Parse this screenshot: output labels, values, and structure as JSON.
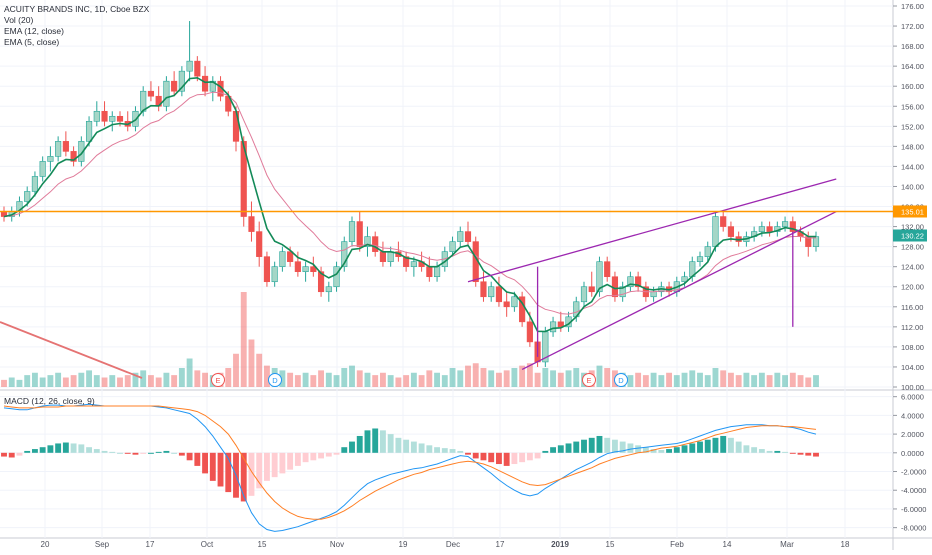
{
  "chart_data": {
    "type": "candlestick",
    "title": "ACUITY BRANDS INC, 1D, Cboe BZX",
    "indicators": [
      "Vol (20)",
      "EMA (12, close)",
      "EMA (5, close)"
    ],
    "macd_label": "MACD (12, 26, close, 9)",
    "price_axis": {
      "ticks": [
        "176.00",
        "172.00",
        "168.00",
        "164.00",
        "160.00",
        "156.00",
        "152.00",
        "148.00",
        "144.00",
        "140.00",
        "136.00",
        "132.00",
        "128.00",
        "124.00",
        "120.00",
        "116.00",
        "112.00",
        "108.00",
        "104.00",
        "100.00"
      ],
      "range": [
        100,
        176
      ]
    },
    "macd_axis": {
      "ticks": [
        "6.0000",
        "4.0000",
        "2.0000",
        "0.0000",
        "-2.0000",
        "-4.0000",
        "-6.0000",
        "-8.0000"
      ],
      "range": [
        -9,
        6.5
      ]
    },
    "time_axis": [
      "20",
      "Sep",
      "17",
      "Oct",
      "15",
      "Nov",
      "19",
      "Dec",
      "17",
      "2019",
      "15",
      "Feb",
      "14",
      "Mar",
      "18"
    ],
    "resistance_level": {
      "value": 135.01,
      "label": "135.01",
      "color": "#ff9800"
    },
    "last_price": {
      "value": 130.22,
      "label": "130.22",
      "color": "#26a69a"
    },
    "earnings_markers": [
      "E",
      "D",
      "E",
      "D"
    ],
    "colors": {
      "up": "#26a69a",
      "down": "#ef5350",
      "ema12": "#e07b9a",
      "ema5": "#138a58",
      "pattern": "#9c27b0",
      "macd": "#2196f3",
      "signal": "#ff7f24"
    },
    "candles": [
      [
        135,
        136,
        133,
        134
      ],
      [
        134,
        136,
        133,
        135
      ],
      [
        135,
        138,
        134,
        137
      ],
      [
        137,
        140,
        136,
        139
      ],
      [
        139,
        143,
        138,
        142
      ],
      [
        142,
        146,
        141,
        145
      ],
      [
        145,
        148,
        143,
        146
      ],
      [
        146,
        150,
        145,
        149
      ],
      [
        149,
        151,
        146,
        147
      ],
      [
        147,
        148,
        144,
        145
      ],
      [
        145,
        150,
        144,
        149
      ],
      [
        149,
        154,
        148,
        153
      ],
      [
        153,
        157,
        152,
        155
      ],
      [
        155,
        157,
        152,
        153
      ],
      [
        153,
        155,
        151,
        154
      ],
      [
        154,
        155,
        152,
        153
      ],
      [
        153,
        155,
        151,
        152
      ],
      [
        152,
        156,
        151,
        155
      ],
      [
        155,
        160,
        154,
        159
      ],
      [
        159,
        161,
        157,
        158
      ],
      [
        158,
        160,
        155,
        156
      ],
      [
        156,
        162,
        155,
        161
      ],
      [
        161,
        163,
        158,
        159
      ],
      [
        159,
        164,
        158,
        163
      ],
      [
        163,
        173,
        161,
        165
      ],
      [
        165,
        166,
        161,
        162
      ],
      [
        162,
        164,
        158,
        159
      ],
      [
        159,
        162,
        157,
        161
      ],
      [
        161,
        162,
        157,
        158
      ],
      [
        158,
        159,
        154,
        155
      ],
      [
        155,
        156,
        147,
        149
      ],
      [
        149,
        150,
        132,
        134
      ],
      [
        134,
        137,
        129,
        131
      ],
      [
        131,
        133,
        124,
        126
      ],
      [
        126,
        127,
        120,
        121
      ],
      [
        121,
        125,
        120,
        124
      ],
      [
        124,
        128,
        123,
        127
      ],
      [
        127,
        128,
        124,
        125
      ],
      [
        125,
        127,
        122,
        123
      ],
      [
        123,
        125,
        121,
        124
      ],
      [
        124,
        126,
        122,
        123
      ],
      [
        123,
        124,
        118,
        119
      ],
      [
        119,
        121,
        117,
        120
      ],
      [
        120,
        125,
        119,
        124
      ],
      [
        124,
        130,
        123,
        129
      ],
      [
        129,
        134,
        128,
        133
      ],
      [
        133,
        135,
        127,
        128
      ],
      [
        128,
        132,
        126,
        130
      ],
      [
        130,
        131,
        126,
        127
      ],
      [
        127,
        129,
        124,
        125
      ],
      [
        125,
        128,
        124,
        127
      ],
      [
        127,
        129,
        125,
        126
      ],
      [
        126,
        127,
        123,
        124
      ],
      [
        124,
        126,
        122,
        125
      ],
      [
        125,
        127,
        123,
        124
      ],
      [
        124,
        126,
        121,
        122
      ],
      [
        122,
        125,
        121,
        124
      ],
      [
        124,
        128,
        123,
        127
      ],
      [
        127,
        130,
        126,
        129
      ],
      [
        129,
        132,
        128,
        131
      ],
      [
        131,
        133,
        128,
        129
      ],
      [
        129,
        130,
        120,
        121
      ],
      [
        121,
        123,
        117,
        118
      ],
      [
        118,
        121,
        117,
        120
      ],
      [
        120,
        122,
        116,
        117
      ],
      [
        117,
        119,
        114,
        116
      ],
      [
        116,
        119,
        115,
        118
      ],
      [
        118,
        119,
        112,
        113
      ],
      [
        113,
        115,
        108,
        109
      ],
      [
        109,
        111,
        104,
        105
      ],
      [
        105,
        112,
        104,
        111
      ],
      [
        111,
        114,
        110,
        113
      ],
      [
        113,
        115,
        111,
        112
      ],
      [
        112,
        115,
        111,
        114
      ],
      [
        114,
        118,
        113,
        117
      ],
      [
        117,
        121,
        116,
        120
      ],
      [
        120,
        123,
        118,
        119
      ],
      [
        119,
        126,
        118,
        125
      ],
      [
        125,
        126,
        121,
        122
      ],
      [
        122,
        123,
        117,
        118
      ],
      [
        118,
        121,
        117,
        120
      ],
      [
        120,
        123,
        119,
        122
      ],
      [
        122,
        123,
        119,
        120
      ],
      [
        120,
        121,
        117,
        118
      ],
      [
        118,
        120,
        117,
        119
      ],
      [
        119,
        121,
        118,
        120
      ],
      [
        120,
        121,
        118,
        119
      ],
      [
        119,
        122,
        118,
        121
      ],
      [
        121,
        123,
        120,
        122
      ],
      [
        122,
        126,
        121,
        125
      ],
      [
        125,
        127,
        124,
        126
      ],
      [
        126,
        129,
        125,
        128
      ],
      [
        128,
        135,
        127,
        134
      ],
      [
        134,
        135,
        131,
        132
      ],
      [
        132,
        133,
        129,
        130
      ],
      [
        130,
        131,
        128,
        129
      ],
      [
        129,
        131,
        128,
        130
      ],
      [
        130,
        132,
        129,
        131
      ],
      [
        131,
        133,
        130,
        132
      ],
      [
        132,
        133,
        130,
        131
      ],
      [
        131,
        133,
        130,
        132
      ],
      [
        132,
        134,
        131,
        133
      ],
      [
        133,
        134,
        130,
        131
      ],
      [
        131,
        132,
        129,
        130
      ],
      [
        130,
        131,
        126,
        128
      ],
      [
        128,
        131,
        127,
        130
      ]
    ],
    "volumes": [
      3,
      4,
      3,
      5,
      6,
      4,
      5,
      6,
      4,
      5,
      6,
      7,
      5,
      4,
      5,
      4,
      5,
      6,
      7,
      5,
      4,
      6,
      5,
      8,
      12,
      7,
      6,
      5,
      6,
      8,
      14,
      40,
      20,
      14,
      9,
      8,
      7,
      6,
      5,
      6,
      5,
      7,
      6,
      5,
      8,
      9,
      7,
      6,
      5,
      6,
      5,
      4,
      5,
      6,
      5,
      7,
      6,
      5,
      8,
      7,
      9,
      10,
      8,
      7,
      6,
      7,
      8,
      9,
      10,
      6,
      8,
      7,
      6,
      7,
      8,
      6,
      7,
      9,
      8,
      7,
      6,
      5,
      6,
      5,
      6,
      5,
      6,
      5,
      6,
      7,
      6,
      5,
      8,
      7,
      6,
      5,
      6,
      5,
      6,
      5,
      6,
      5,
      6,
      5,
      4,
      5
    ],
    "macd_hist": [
      -0.4,
      -0.5,
      -0.3,
      0.2,
      0.4,
      0.6,
      0.8,
      1.0,
      1.1,
      1.0,
      0.9,
      0.6,
      0.4,
      0.2,
      0.1,
      0.0,
      -0.1,
      -0.2,
      -0.1,
      0.0,
      0.1,
      0.2,
      0.0,
      -0.3,
      -0.8,
      -1.4,
      -2.2,
      -3.0,
      -3.6,
      -4.2,
      -4.8,
      -5.2,
      -4.6,
      -3.8,
      -3.0,
      -2.6,
      -2.2,
      -1.8,
      -1.4,
      -1.0,
      -0.8,
      -0.6,
      -0.4,
      -0.2,
      0.6,
      1.2,
      1.8,
      2.4,
      2.6,
      2.4,
      2.0,
      1.6,
      1.4,
      1.2,
      1.0,
      0.8,
      0.6,
      0.5,
      0.4,
      0.2,
      -0.2,
      -0.6,
      -0.8,
      -1.0,
      -1.2,
      -1.4,
      -1.2,
      -1.0,
      -0.8,
      -0.6,
      0.2,
      0.6,
      0.8,
      1.0,
      1.2,
      1.4,
      1.6,
      1.8,
      1.6,
      1.4,
      1.2,
      1.0,
      0.8,
      0.6,
      0.4,
      0.3,
      0.4,
      0.6,
      0.8,
      1.0,
      1.2,
      1.4,
      1.6,
      1.8,
      1.6,
      1.2,
      0.8,
      0.6,
      0.4,
      0.2,
      0.2,
      0.1,
      -0.1,
      -0.2,
      -0.3,
      -0.4
    ],
    "macd_line": [
      4.8,
      4.7,
      4.6,
      4.6,
      4.8,
      5.0,
      5.1,
      5.1,
      5.0,
      5.0,
      5.1,
      5.2,
      5.1,
      5.0,
      5.0,
      5.0,
      5.0,
      5.0,
      5.0,
      5.0,
      4.9,
      4.8,
      4.6,
      4.4,
      4.2,
      3.6,
      2.8,
      1.8,
      0.6,
      -0.6,
      -2.4,
      -4.6,
      -6.4,
      -7.6,
      -8.2,
      -8.4,
      -8.3,
      -8.1,
      -7.9,
      -7.6,
      -7.3,
      -7.0,
      -6.7,
      -6.3,
      -5.6,
      -4.8,
      -4.0,
      -3.3,
      -2.9,
      -2.6,
      -2.3,
      -2.1,
      -1.9,
      -1.7,
      -1.6,
      -1.4,
      -1.2,
      -0.9,
      -0.6,
      -0.3,
      -0.4,
      -1.0,
      -1.6,
      -2.2,
      -2.9,
      -3.5,
      -4.0,
      -4.4,
      -4.6,
      -4.4,
      -3.8,
      -3.3,
      -2.8,
      -2.3,
      -1.8,
      -1.4,
      -1.0,
      -0.5,
      -0.1,
      0.1,
      0.2,
      0.4,
      0.5,
      0.6,
      0.7,
      0.8,
      0.9,
      1.0,
      1.2,
      1.5,
      1.8,
      2.1,
      2.4,
      2.6,
      2.8,
      2.9,
      3.0,
      3.0,
      3.0,
      2.9,
      2.9,
      2.8,
      2.7,
      2.5,
      2.2,
      2.0
    ],
    "signal_line": [
      5.0,
      4.9,
      4.8,
      4.8,
      4.8,
      4.9,
      4.9,
      4.9,
      5.0,
      5.0,
      5.0,
      5.0,
      5.0,
      5.0,
      5.0,
      5.0,
      5.0,
      5.0,
      5.0,
      5.0,
      5.0,
      4.9,
      4.8,
      4.7,
      4.6,
      4.4,
      4.0,
      3.4,
      2.8,
      2.0,
      0.8,
      -0.6,
      -2.0,
      -3.2,
      -4.3,
      -5.2,
      -5.9,
      -6.4,
      -6.8,
      -7.0,
      -7.1,
      -7.1,
      -6.9,
      -6.6,
      -6.2,
      -5.7,
      -5.1,
      -4.6,
      -4.1,
      -3.7,
      -3.3,
      -2.9,
      -2.6,
      -2.3,
      -2.1,
      -1.8,
      -1.6,
      -1.4,
      -1.2,
      -1.0,
      -0.9,
      -1.0,
      -1.2,
      -1.5,
      -1.9,
      -2.3,
      -2.7,
      -3.1,
      -3.4,
      -3.5,
      -3.4,
      -3.1,
      -2.8,
      -2.5,
      -2.2,
      -1.9,
      -1.6,
      -1.2,
      -0.9,
      -0.6,
      -0.4,
      -0.2,
      0.0,
      0.1,
      0.3,
      0.5,
      0.6,
      0.7,
      0.9,
      1.1,
      1.3,
      1.6,
      1.9,
      2.1,
      2.3,
      2.5,
      2.7,
      2.8,
      2.9,
      2.9,
      2.9,
      2.8,
      2.8,
      2.7,
      2.6,
      2.5
    ]
  }
}
